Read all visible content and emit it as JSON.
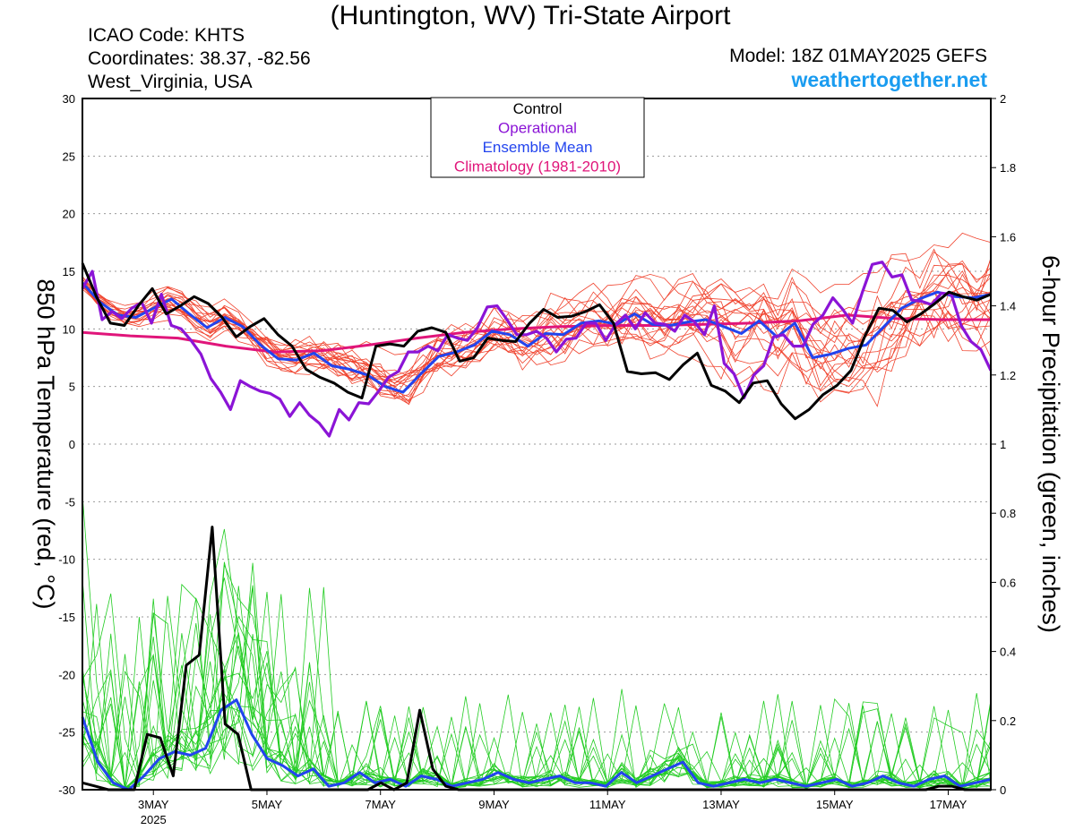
{
  "header": {
    "title": "(Huntington, WV) Tri-State Airport",
    "icao": "ICAO Code: KHTS",
    "coordinates": "Coordinates: 38.37, -82.56",
    "region": "West_Virginia, USA",
    "model": "Model: 18Z 01MAY2025 GEFS",
    "site": "weathertogether.net"
  },
  "colors": {
    "member_temp": "#f0432e",
    "member_precip": "#22cc22",
    "control": "#000000",
    "operational": "#8b14d6",
    "ensemble_mean": "#2244ee",
    "climatology": "#e0157a",
    "site": "#1a9cf0"
  },
  "chart_data": {
    "type": "line",
    "title": "(Huntington, WV) Tri-State Airport",
    "ylabel_left": "850 hPa Temperature (red, °C)",
    "ylabel_right": "6-hour Precipitation (green, inches)",
    "y_left": {
      "min": -30,
      "max": 30,
      "ticks": [
        "30",
        "25",
        "20",
        "15",
        "10",
        "5",
        "0",
        "-5",
        "-10",
        "-15",
        "-20",
        "-25",
        "-30"
      ]
    },
    "y_right": {
      "min": 0,
      "max": 2,
      "ticks": [
        "2",
        "1.8",
        "1.6",
        "1.4",
        "1.2",
        "1",
        "0.8",
        "0.6",
        "0.4",
        "0.2",
        "0"
      ]
    },
    "x_range": [
      "2025-05-01T18:00",
      "2025-05-17T18:00"
    ],
    "x_step_hours": 6,
    "x_ticks": [
      "3MAY",
      "5MAY",
      "7MAY",
      "9MAY",
      "11MAY",
      "13MAY",
      "15MAY",
      "17MAY"
    ],
    "x_tick_sub": "2025",
    "grid": true,
    "legend": {
      "placement": "top-center",
      "entries": [
        "Control",
        "Operational",
        "Ensemble Mean",
        "Climatology (1981-2010)"
      ]
    },
    "series": [
      {
        "name": "Control",
        "axis": "temperature",
        "values": [
          15.7,
          12.8,
          10.5,
          10.3,
          12.0,
          13.5,
          11.3,
          12.0,
          12.8,
          12.2,
          11.0,
          9.3,
          10.2,
          10.9,
          9.5,
          8.5,
          6.5,
          5.8,
          5.3,
          4.5,
          4.0,
          8.5,
          8.7,
          8.5,
          9.8,
          10.1,
          9.7,
          7.2,
          7.5,
          9.2,
          9.0,
          8.9,
          10.5,
          11.7,
          11.0,
          11.1,
          11.5,
          12.1,
          10.5,
          6.3,
          6.1,
          6.2,
          5.6,
          6.9,
          7.9,
          5.1,
          4.6,
          3.6,
          5.3,
          5.5,
          3.5,
          2.2,
          3.0,
          4.3,
          5.1,
          6.4,
          9.4,
          11.8,
          11.6,
          10.6,
          11.3,
          12.2,
          13.2,
          12.8,
          12.5,
          13.0
        ]
      },
      {
        "name": "Operational",
        "axis": "temperature",
        "values": [
          13.5,
          15.0,
          10.8,
          11.5,
          10.9,
          11.8,
          12.3,
          10.5,
          13.0,
          10.3,
          10.0,
          9.0,
          7.8,
          5.7,
          4.5,
          3.0,
          5.5,
          5.0,
          4.6,
          4.4,
          3.9,
          2.4,
          3.6,
          2.5,
          1.8,
          0.7,
          3.0,
          2.1,
          3.6,
          3.5,
          4.6,
          5.8,
          6.3,
          8.0,
          8.0,
          8.5,
          8.1,
          9.5,
          9.2,
          9.0,
          10.1,
          11.9,
          12.0,
          10.8,
          9.5,
          9.5,
          9.8,
          9.2,
          8.0,
          9.1,
          9.2,
          10.5,
          10.5,
          9.0,
          10.4,
          11.2,
          10.0,
          11.4,
          10.5,
          10.4,
          9.8,
          11.2,
          10.6,
          9.5,
          12.0,
          7.0,
          6.1,
          4.0,
          6.0,
          6.8,
          9.3,
          9.5,
          8.5,
          8.5,
          10.4,
          11.2,
          12.7,
          11.7,
          10.5,
          13.2,
          15.6,
          15.8,
          14.5,
          14.7,
          12.5,
          12.4,
          12.1,
          13.1,
          13.0,
          10.3,
          8.9,
          8.2,
          6.4
        ]
      },
      {
        "name": "Ensemble Mean",
        "axis": "temperature",
        "values": [
          14.0,
          12.3,
          11.2,
          11.0,
          11.8,
          12.6,
          11.3,
          10.1,
          11.0,
          10.2,
          8.6,
          7.4,
          7.3,
          7.9,
          6.8,
          6.5,
          6.0,
          5.0,
          4.5,
          6.1,
          7.6,
          8.0,
          8.6,
          9.8,
          9.5,
          8.5,
          9.6,
          9.5,
          10.5,
          10.7,
          10.4,
          11.3,
          10.4,
          10.3,
          10.6,
          10.8,
          10.2,
          9.6,
          10.7,
          9.3,
          10.5,
          7.5,
          7.8,
          8.3,
          8.6,
          10.2,
          11.8,
          12.6,
          13.2,
          12.8,
          12.7,
          13.0
        ]
      },
      {
        "name": "Climatology (1981-2010)",
        "axis": "temperature",
        "values": [
          9.7,
          9.4,
          9.2,
          8.5,
          8.0,
          8.1,
          8.6,
          9.2,
          9.7,
          10.0,
          10.2,
          10.3,
          10.3,
          10.4,
          10.5,
          10.7,
          11.2,
          10.9,
          10.8,
          10.8
        ]
      },
      {
        "name": "Control precipitation",
        "axis": "precipitation",
        "values": [
          0.02,
          0.01,
          0,
          0,
          0,
          0.16,
          0.15,
          0.04,
          0.36,
          0.39,
          0.76,
          0.19,
          0.16,
          0,
          0,
          0,
          0,
          0,
          0,
          0,
          0,
          0,
          0,
          0.02,
          0,
          0.02,
          0.23,
          0.06,
          0.01,
          0,
          0,
          0,
          0,
          0,
          0,
          0,
          0,
          0,
          0,
          0,
          0,
          0,
          0,
          0,
          0,
          0,
          0,
          0,
          0,
          0,
          0,
          0,
          0,
          0,
          0,
          0,
          0,
          0,
          0,
          0,
          0,
          0,
          0,
          0,
          0,
          0,
          0.01,
          0.01,
          0,
          0,
          0
        ]
      },
      {
        "name": "Ensemble mean precipitation",
        "axis": "precipitation",
        "values": [
          0.21,
          0.08,
          0.02,
          0,
          0.04,
          0.09,
          0.11,
          0.1,
          0.12,
          0.23,
          0.26,
          0.16,
          0.09,
          0.07,
          0.04,
          0.06,
          0.01,
          0.02,
          0.05,
          0.02,
          0.03,
          0.01,
          0.04,
          0.03,
          0.01,
          0.02,
          0.03,
          0.05,
          0.03,
          0.02,
          0.03,
          0.04,
          0.02,
          0.02,
          0.01,
          0.05,
          0.02,
          0.04,
          0.06,
          0.08,
          0.02,
          0.01,
          0.02,
          0.03,
          0.02,
          0.03,
          0.02,
          0.01,
          0.02,
          0.03,
          0.01,
          0.02,
          0.04,
          0.02,
          0.01,
          0.03,
          0.04,
          0.01,
          0.02,
          0.03
        ]
      }
    ]
  }
}
